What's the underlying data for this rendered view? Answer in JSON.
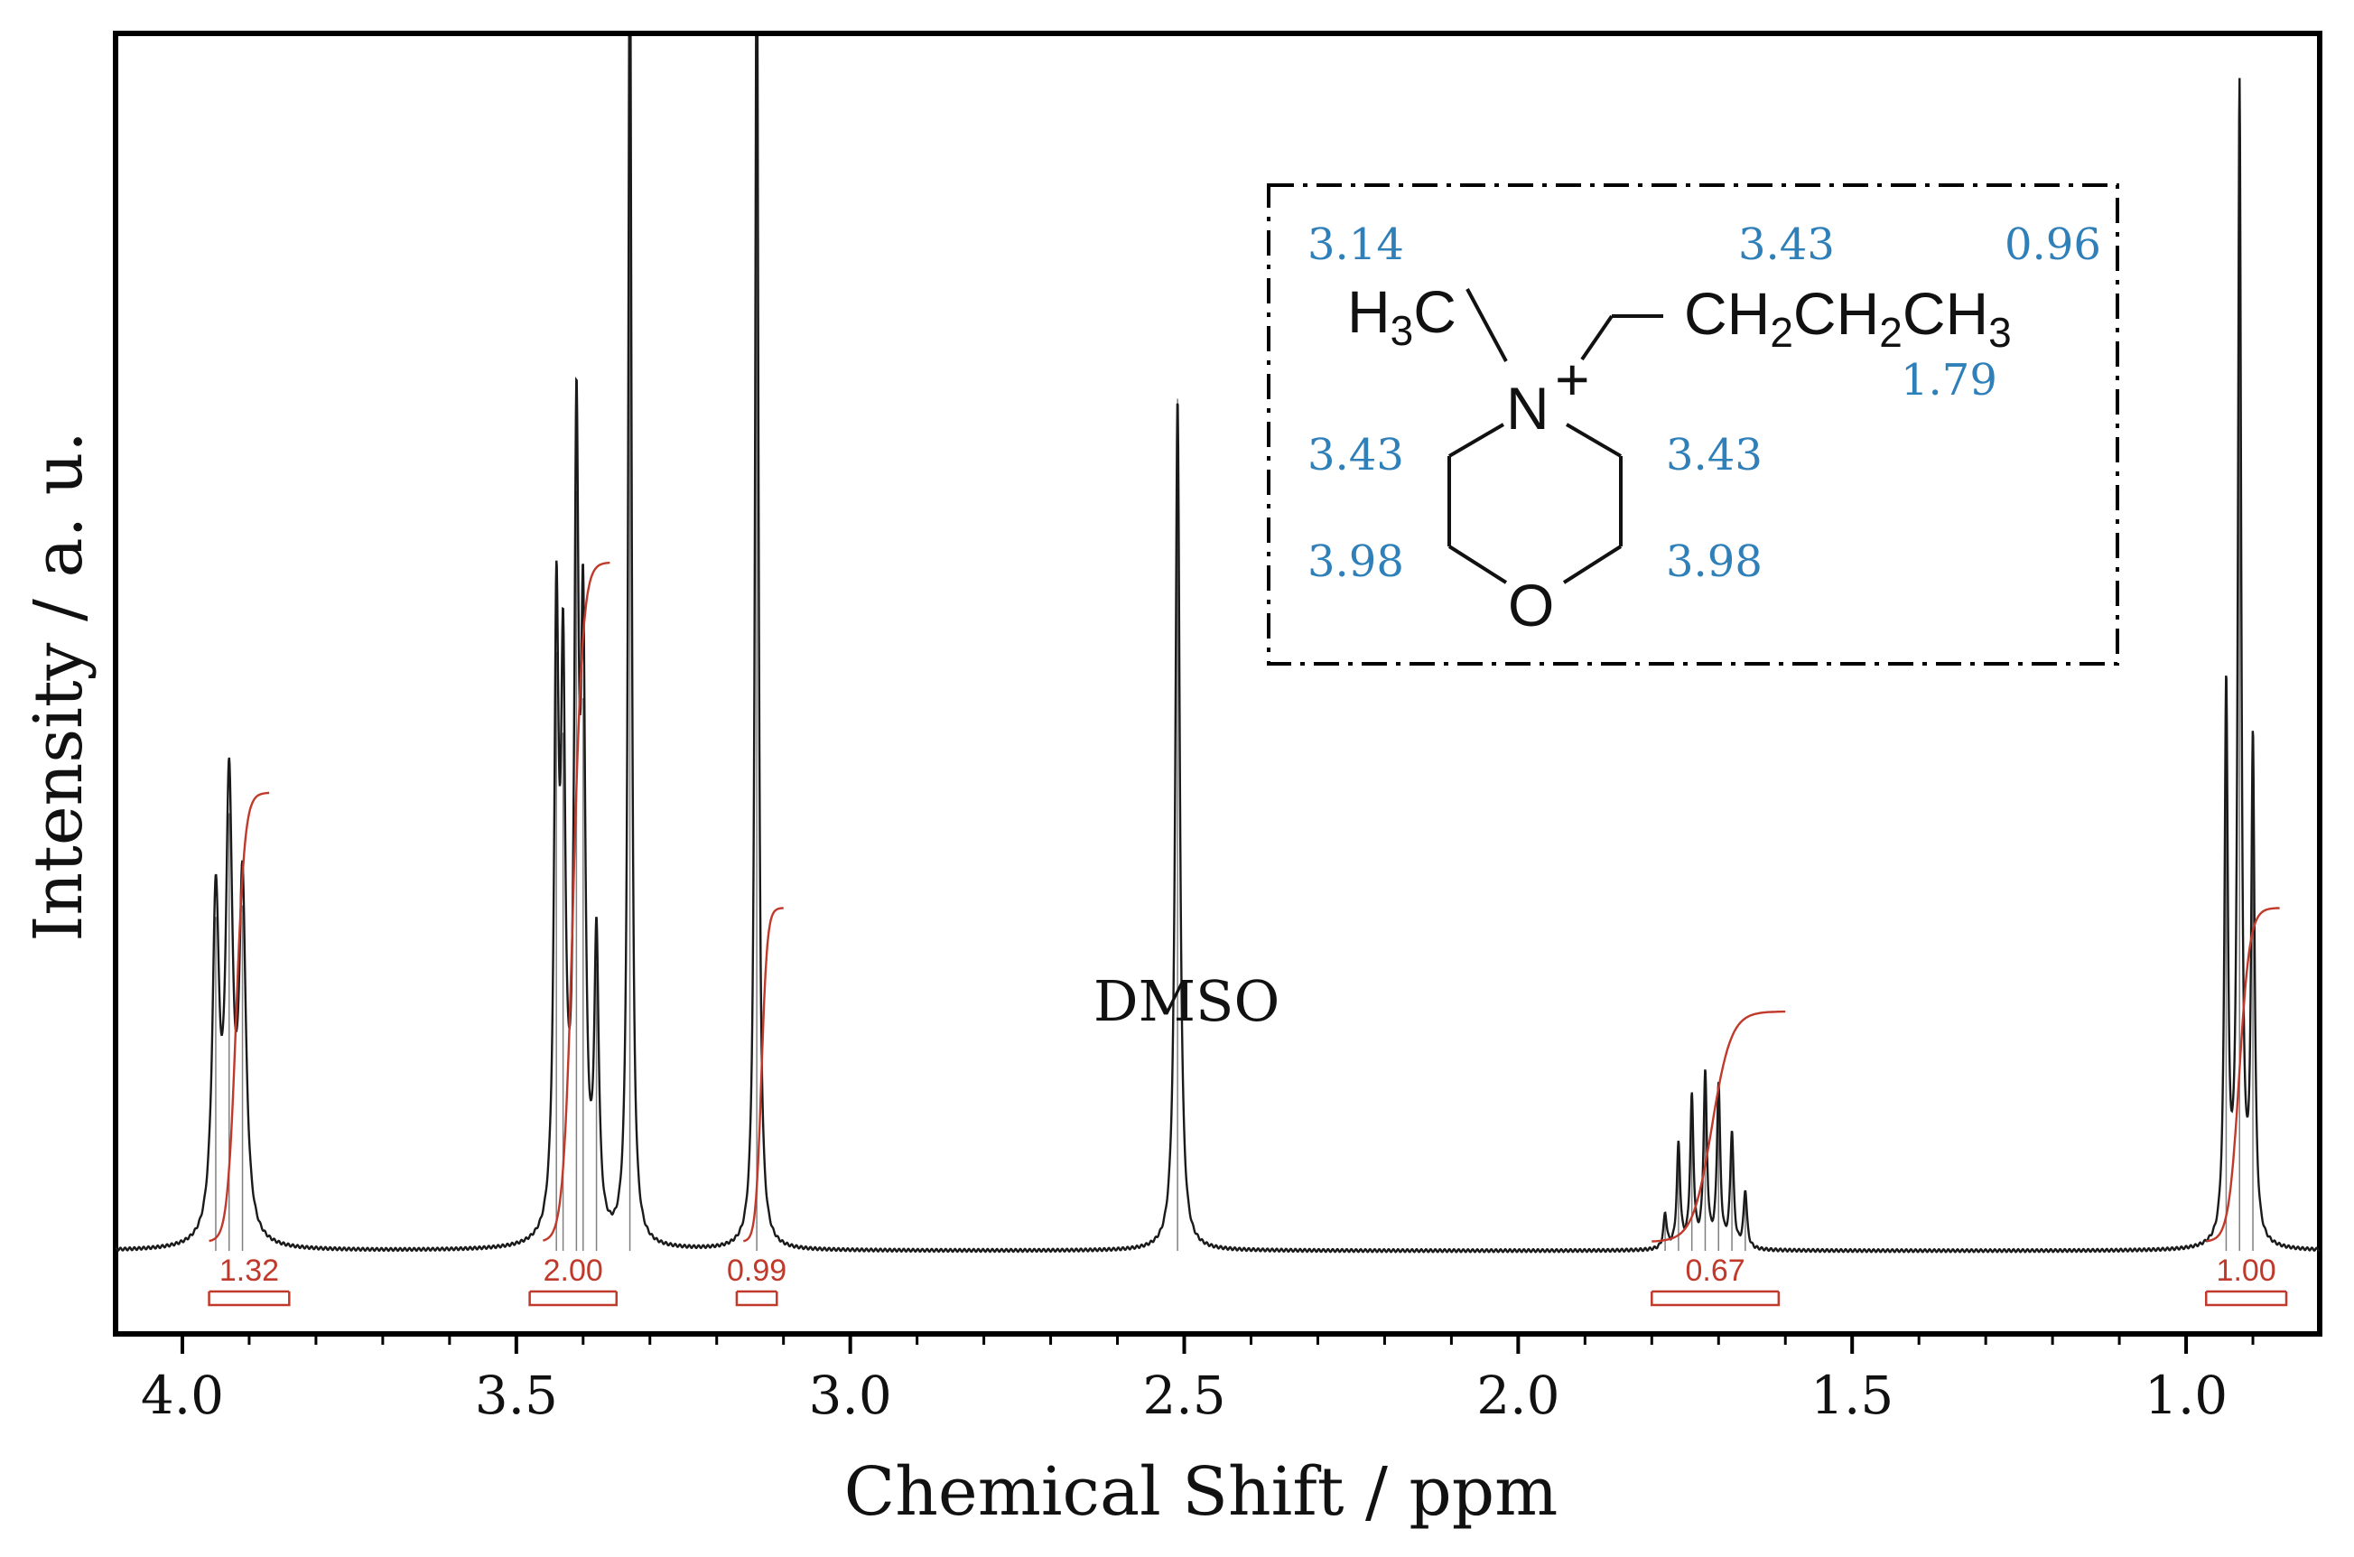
{
  "chart_data": {
    "type": "line",
    "xlabel": "Chemical Shift / ppm",
    "ylabel": "Intensity / a. u.",
    "x_reversed": true,
    "xlim": [
      4.1,
      0.8
    ],
    "x_ticks": [
      4.0,
      3.5,
      3.0,
      2.5,
      2.0,
      1.5,
      1.0
    ],
    "x_tick_labels": [
      "4.0",
      "3.5",
      "3.0",
      "2.5",
      "2.0",
      "1.5",
      "1.0"
    ],
    "y_ticks_shown": false,
    "grid": false,
    "series": [
      {
        "role": "spectrum",
        "color": "#1a1a1a",
        "peaks": [
          {
            "shift": 3.95,
            "height": 0.29,
            "width": 0.006
          },
          {
            "shift": 3.93,
            "height": 0.38,
            "width": 0.006
          },
          {
            "shift": 3.91,
            "height": 0.3,
            "width": 0.006
          },
          {
            "shift": 3.44,
            "height": 0.52,
            "width": 0.004
          },
          {
            "shift": 3.43,
            "height": 0.45,
            "width": 0.004
          },
          {
            "shift": 3.41,
            "height": 0.66,
            "width": 0.004
          },
          {
            "shift": 3.4,
            "height": 0.48,
            "width": 0.004
          },
          {
            "shift": 3.38,
            "height": 0.25,
            "width": 0.004
          },
          {
            "shift": 3.33,
            "height": 1.2,
            "width": 0.003
          },
          {
            "shift": 3.14,
            "height": 1.2,
            "width": 0.003
          },
          {
            "shift": 2.51,
            "height": 0.74,
            "width": 0.004
          },
          {
            "shift": 1.78,
            "height": 0.03,
            "width": 0.003
          },
          {
            "shift": 1.76,
            "height": 0.09,
            "width": 0.003
          },
          {
            "shift": 1.74,
            "height": 0.13,
            "width": 0.003
          },
          {
            "shift": 1.72,
            "height": 0.15,
            "width": 0.003
          },
          {
            "shift": 1.7,
            "height": 0.14,
            "width": 0.003
          },
          {
            "shift": 1.68,
            "height": 0.1,
            "width": 0.003
          },
          {
            "shift": 1.66,
            "height": 0.05,
            "width": 0.003
          },
          {
            "shift": 0.94,
            "height": 0.48,
            "width": 0.003
          },
          {
            "shift": 0.92,
            "height": 1.0,
            "width": 0.003
          },
          {
            "shift": 0.9,
            "height": 0.43,
            "width": 0.003
          }
        ]
      },
      {
        "role": "integral-curves",
        "color": "#c0392b",
        "regions": [
          {
            "from": 3.96,
            "to": 3.87,
            "rise": 0.39
          },
          {
            "from": 3.46,
            "to": 3.36,
            "rise": 0.59
          },
          {
            "from": 3.16,
            "to": 3.1,
            "rise": 0.29
          },
          {
            "from": 1.8,
            "to": 1.6,
            "rise": 0.2
          },
          {
            "from": 0.97,
            "to": 0.86,
            "rise": 0.29
          }
        ]
      }
    ],
    "integrals": [
      {
        "label": "1.32",
        "from": 3.96,
        "to": 3.84
      },
      {
        "label": "2.00",
        "from": 3.48,
        "to": 3.35
      },
      {
        "label": "0.99",
        "from": 3.17,
        "to": 3.11
      },
      {
        "label": "0.67",
        "from": 1.8,
        "to": 1.61
      },
      {
        "label": "1.00",
        "from": 0.97,
        "to": 0.85
      }
    ],
    "annotations": [
      {
        "text": "DMSO",
        "near_shift": 2.51
      }
    ],
    "inset": {
      "formula_left": "H3C",
      "formula_right": "CH2CH2CH3",
      "nitrogen": "N",
      "nitrogen_charge": "+",
      "oxygen": "O",
      "shift_labels": {
        "n_methyl": "3.14",
        "n_ch2": "3.43",
        "terminal_ch3": "0.96",
        "middle_ch2": "1.79",
        "ring_nch2_left": "3.43",
        "ring_nch2_right": "3.43",
        "ring_och2_left": "3.98",
        "ring_och2_right": "3.98"
      }
    },
    "colors": {
      "spectrum": "#1a1a1a",
      "integral": "#c0392b",
      "assignment": "#2f7fb8",
      "frame": "#000000"
    }
  }
}
